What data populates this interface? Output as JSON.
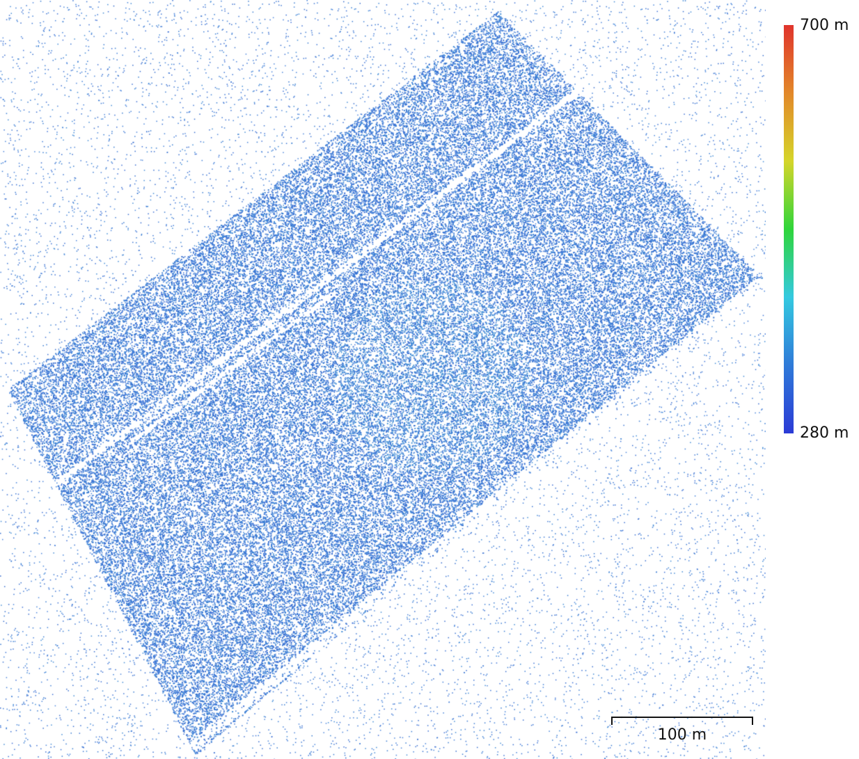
{
  "map": {
    "type": "elevation-point-cloud",
    "colormap": [
      "#2b3bd6",
      "#2f7ad8",
      "#34c9e0",
      "#2fd53a",
      "#d5d52a",
      "#e2882a",
      "#e0342c"
    ],
    "dominant_color": "#3a74d4",
    "elevation_range": {
      "min": 280,
      "max": 700,
      "unit": "m"
    }
  },
  "legend": {
    "max_label": "700 m",
    "min_label": "280 m"
  },
  "scale_bar": {
    "label": "100 m"
  }
}
